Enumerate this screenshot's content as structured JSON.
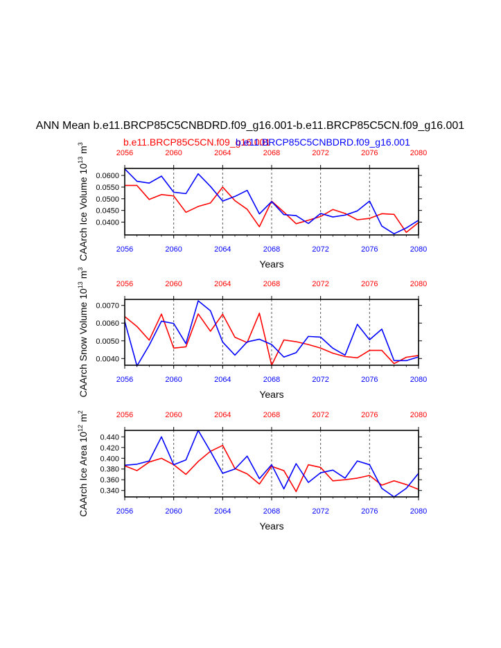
{
  "title": "ANN Mean b.e11.BRCP85C5CNBDRD.f09_g16.001-b.e11.BRCP85C5CN.f09_g16.001",
  "legend": {
    "red_label": "b.e11.BRCP85C5CN.f09_g16.001",
    "blue_label": "b.e11.BRCP85C5CNBDRD.f09_g16.001"
  },
  "colors": {
    "red": "#ff0000",
    "blue": "#0000ff",
    "axis": "#000000",
    "grid": "#555555"
  },
  "chart_data": [
    {
      "type": "line",
      "title": "",
      "xlabel": "Years",
      "ylabel": "CAArch Ice Volume 10",
      "ylabel_exp": "13",
      "ylabel_unit": "m",
      "ylabel_unit_exp": "3",
      "xlim": [
        2056,
        2080
      ],
      "ylim": [
        0.0345,
        0.063
      ],
      "x_ticks": [
        2056,
        2060,
        2064,
        2068,
        2072,
        2076,
        2080
      ],
      "y_ticks": [
        0.04,
        0.045,
        0.05,
        0.055,
        0.06
      ],
      "y_tick_labels": [
        "0.0400",
        "0.0450",
        "0.0500",
        "0.0550",
        "0.0600"
      ],
      "x": [
        2056,
        2057,
        2058,
        2059,
        2060,
        2061,
        2062,
        2063,
        2064,
        2065,
        2066,
        2067,
        2068,
        2069,
        2070,
        2071,
        2072,
        2073,
        2074,
        2075,
        2076,
        2077,
        2078,
        2079,
        2080
      ],
      "series": [
        {
          "name": "b.e11.BRCP85C5CN.f09_g16.001",
          "color": "#ff0000",
          "values": [
            0.0557,
            0.0557,
            0.0497,
            0.0518,
            0.0512,
            0.0442,
            0.0467,
            0.0482,
            0.055,
            0.0492,
            0.0455,
            0.038,
            0.049,
            0.0443,
            0.0393,
            0.0408,
            0.0424,
            0.0454,
            0.0437,
            0.041,
            0.0416,
            0.0436,
            0.0433,
            0.0356,
            0.0398
          ]
        },
        {
          "name": "b.e11.BRCP85C5CNBDRD.f09_g16.001",
          "color": "#0000ff",
          "values": [
            0.0628,
            0.0575,
            0.0567,
            0.0597,
            0.0528,
            0.0522,
            0.0607,
            0.0553,
            0.049,
            0.051,
            0.0536,
            0.0435,
            0.0488,
            0.0432,
            0.0428,
            0.0394,
            0.0437,
            0.0422,
            0.043,
            0.0448,
            0.049,
            0.0383,
            0.035,
            0.0375,
            0.0408
          ]
        }
      ]
    },
    {
      "type": "line",
      "title": "",
      "xlabel": "Years",
      "ylabel": "CAArch Snow Volume 10",
      "ylabel_exp": "13",
      "ylabel_unit": "m",
      "ylabel_unit_exp": "3",
      "xlim": [
        2056,
        2080
      ],
      "ylim": [
        0.00362,
        0.00734
      ],
      "x_ticks": [
        2056,
        2060,
        2064,
        2068,
        2072,
        2076,
        2080
      ],
      "y_ticks": [
        0.004,
        0.005,
        0.006,
        0.007
      ],
      "y_tick_labels": [
        "0.0040",
        "0.0050",
        "0.0060",
        "0.0070"
      ],
      "x": [
        2056,
        2057,
        2058,
        2059,
        2060,
        2061,
        2062,
        2063,
        2064,
        2065,
        2066,
        2067,
        2068,
        2069,
        2070,
        2071,
        2072,
        2073,
        2074,
        2075,
        2076,
        2077,
        2078,
        2079,
        2080
      ],
      "series": [
        {
          "name": "b.e11.BRCP85C5CN.f09_g16.001",
          "color": "#ff0000",
          "values": [
            0.00637,
            0.00581,
            0.00504,
            0.00651,
            0.00459,
            0.00466,
            0.00652,
            0.00554,
            0.0065,
            0.0052,
            0.0049,
            0.00656,
            0.00362,
            0.00505,
            0.00495,
            0.00479,
            0.00459,
            0.0043,
            0.00411,
            0.00404,
            0.00446,
            0.00446,
            0.00371,
            0.00407,
            0.00417
          ]
        },
        {
          "name": "b.e11.BRCP85C5CNBDRD.f09_g16.001",
          "color": "#0000ff",
          "values": [
            0.0061,
            0.00358,
            0.00475,
            0.00611,
            0.00598,
            0.00484,
            0.00726,
            0.0067,
            0.00493,
            0.00419,
            0.00494,
            0.00509,
            0.00479,
            0.00408,
            0.00433,
            0.00525,
            0.00521,
            0.00458,
            0.00419,
            0.00593,
            0.00506,
            0.00566,
            0.00388,
            0.00388,
            0.00409
          ]
        }
      ]
    },
    {
      "type": "line",
      "title": "",
      "xlabel": "Years",
      "ylabel": "CAArch Ice Area 10",
      "ylabel_exp": "12",
      "ylabel_unit": "m",
      "ylabel_unit_exp": "2",
      "xlim": [
        2056,
        2080
      ],
      "ylim": [
        0.328,
        0.452
      ],
      "x_ticks": [
        2056,
        2060,
        2064,
        2068,
        2072,
        2076,
        2080
      ],
      "y_ticks": [
        0.34,
        0.36,
        0.38,
        0.4,
        0.42,
        0.44
      ],
      "y_tick_labels": [
        "0.340",
        "0.360",
        "0.380",
        "0.400",
        "0.420",
        "0.440"
      ],
      "x": [
        2056,
        2057,
        2058,
        2059,
        2060,
        2061,
        2062,
        2063,
        2064,
        2065,
        2066,
        2067,
        2068,
        2069,
        2070,
        2071,
        2072,
        2073,
        2074,
        2075,
        2076,
        2077,
        2078,
        2079,
        2080
      ],
      "series": [
        {
          "name": "b.e11.BRCP85C5CN.f09_g16.001",
          "color": "#ff0000",
          "values": [
            0.386,
            0.377,
            0.393,
            0.4,
            0.388,
            0.37,
            0.394,
            0.413,
            0.424,
            0.381,
            0.371,
            0.352,
            0.385,
            0.377,
            0.338,
            0.388,
            0.383,
            0.358,
            0.36,
            0.363,
            0.368,
            0.35,
            0.358,
            0.351,
            0.342
          ]
        },
        {
          "name": "b.e11.BRCP85C5CNBDRD.f09_g16.001",
          "color": "#0000ff",
          "values": [
            0.387,
            0.389,
            0.395,
            0.44,
            0.388,
            0.397,
            0.452,
            0.413,
            0.372,
            0.38,
            0.404,
            0.362,
            0.388,
            0.343,
            0.39,
            0.355,
            0.373,
            0.378,
            0.363,
            0.395,
            0.388,
            0.344,
            0.328,
            0.344,
            0.372
          ]
        }
      ]
    }
  ]
}
